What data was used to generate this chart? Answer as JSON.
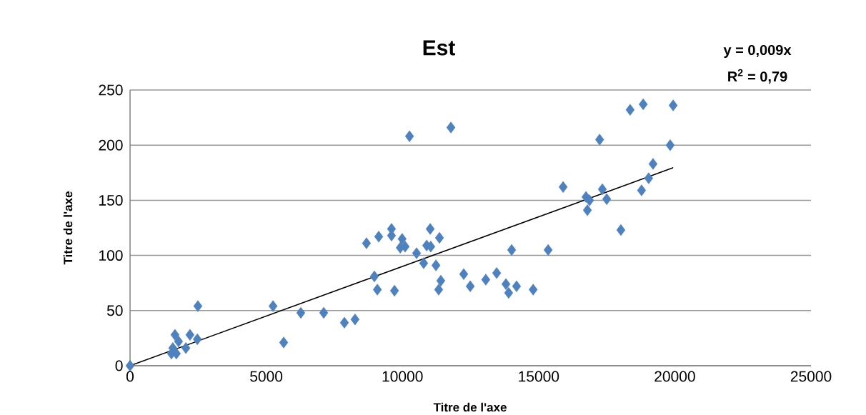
{
  "chart_data": {
    "type": "scatter",
    "title": "Est",
    "xlabel": "Titre de l'axe",
    "ylabel": "Titre de l'axe",
    "annotations": [
      "y = 0,009x",
      "R$^{2}$ = 0,79"
    ],
    "xlim": [
      0,
      25000
    ],
    "ylim": [
      0,
      250
    ],
    "xticks": [
      0,
      5000,
      10000,
      15000,
      20000,
      25000
    ],
    "yticks": [
      0,
      50,
      100,
      150,
      200,
      250
    ],
    "grid": "y",
    "legend": false,
    "marker": "diamond",
    "series": [
      {
        "color": "#4f81bd",
        "x": [
          0,
          1650,
          1520,
          1700,
          1780,
          2050,
          2200,
          2470,
          2490,
          1570,
          5250,
          5640,
          6270,
          7110,
          7870,
          8260,
          10260,
          11780,
          8680,
          9130,
          9600,
          9600,
          9990,
          9920,
          10100,
          10520,
          11020,
          11360,
          10890,
          11040,
          10780,
          11230,
          8970,
          9080,
          9710,
          11410,
          11330,
          12250,
          12490,
          13060,
          13460,
          13800,
          13900,
          14190,
          14800,
          14010,
          15350,
          16790,
          18020,
          15900,
          16740,
          16870,
          17340,
          17500,
          18780,
          19040,
          19200,
          19830,
          17240,
          18360,
          18840,
          19940
        ],
        "values": [
          0,
          28,
          11,
          11,
          22,
          16,
          28,
          24,
          54,
          16,
          54,
          21,
          48,
          48,
          39,
          42,
          208,
          216,
          111,
          117,
          124,
          118,
          115,
          107,
          108,
          102,
          124,
          116,
          109,
          108,
          93,
          91,
          81,
          69,
          68,
          77,
          69,
          83,
          72,
          78,
          84,
          74,
          66,
          72,
          69,
          105,
          105,
          141,
          123,
          162,
          153,
          150,
          160,
          151,
          159,
          170,
          183,
          200,
          205,
          232,
          237,
          236
        ]
      },
      {
        "type": "line",
        "color": "#000000",
        "marker": "none",
        "x": [
          0,
          19940
        ],
        "values": [
          0,
          179.5
        ]
      }
    ]
  }
}
